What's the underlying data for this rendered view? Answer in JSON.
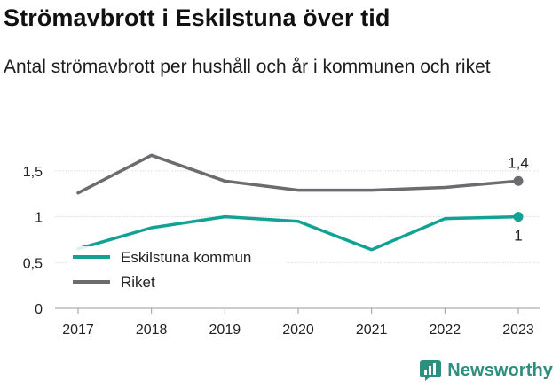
{
  "header": {
    "title": "Strömavbrott i Eskilstuna över tid",
    "subtitle": "Antal strömavbrott per hushåll och år i kommunen och riket"
  },
  "brand": {
    "name": "Newsworthy",
    "color": "#2f8f7f"
  },
  "chart_data": {
    "type": "line",
    "title": "Strömavbrott i Eskilstuna över tid",
    "subtitle": "Antal strömavbrott per hushåll och år i kommunen och riket",
    "x": [
      2017,
      2018,
      2019,
      2020,
      2021,
      2022,
      2023
    ],
    "x_tick_labels": [
      "2017",
      "2018",
      "2019",
      "2020",
      "2021",
      "2022",
      "2023"
    ],
    "y_ticks": [
      0,
      0.5,
      1,
      1.5
    ],
    "y_tick_labels": [
      "0",
      "0,5",
      "1",
      "1,5"
    ],
    "ylim": [
      0,
      1.7
    ],
    "grid": true,
    "legend_position": "bottom-left",
    "series": [
      {
        "name": "Eskilstuna kommun",
        "color": "#12a294",
        "values": [
          0.65,
          0.88,
          1.0,
          0.95,
          0.64,
          0.98,
          1.0
        ],
        "end_label": "1"
      },
      {
        "name": "Riket",
        "color": "#6b6b70",
        "values": [
          1.26,
          1.67,
          1.39,
          1.29,
          1.29,
          1.32,
          1.39
        ],
        "end_label": "1,4"
      }
    ]
  }
}
